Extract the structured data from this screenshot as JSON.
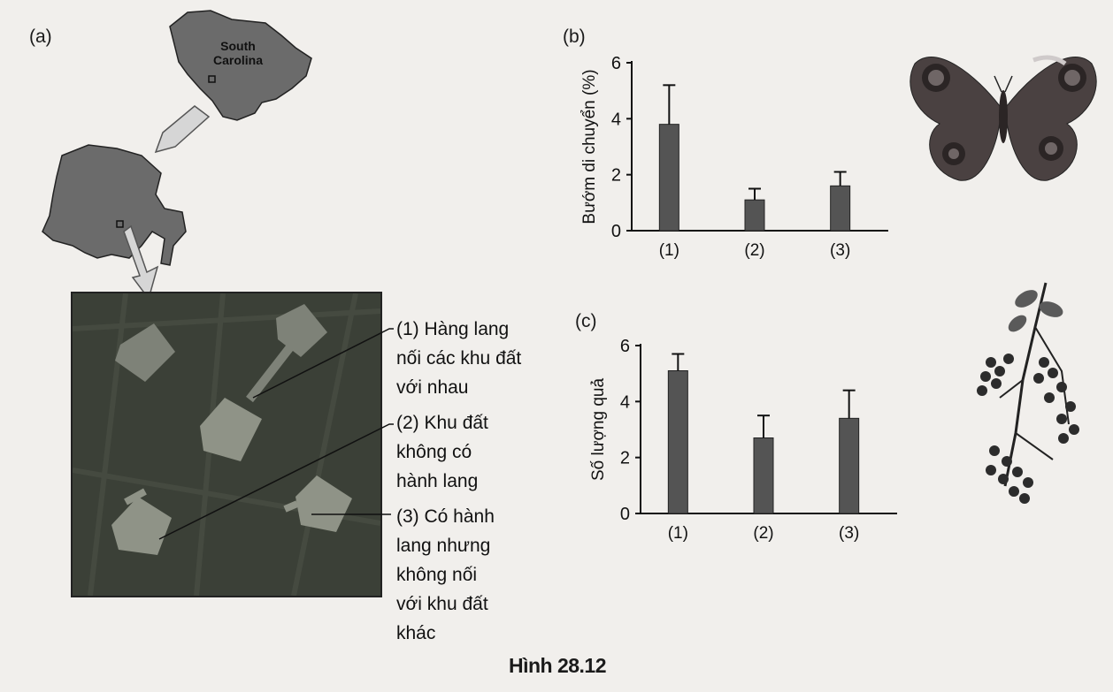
{
  "panels": {
    "a": "(a)",
    "b": "(b)",
    "c": "(c)"
  },
  "map": {
    "state_line1": "South",
    "state_line2": "Carolina"
  },
  "captions": {
    "c1": [
      "(1) Hàng lang",
      "nối các khu đất",
      "với nhau"
    ],
    "c2": [
      "(2) Khu đất",
      "không có",
      "hành lang"
    ],
    "c3": [
      "(3) Có hành",
      "lang nhưng",
      "không nối",
      "với khu đất",
      "khác"
    ]
  },
  "figure_title": "Hình 28.12",
  "colors": {
    "bar": "#545454",
    "map_fill": "#6b6b6b",
    "aerial_bg": "#3b4037",
    "patch": "#8f9387"
  },
  "icons": [
    "butterfly-icon",
    "berry-branch-icon"
  ],
  "chart_data": [
    {
      "type": "bar",
      "panel": "(b)",
      "categories": [
        "(1)",
        "(2)",
        "(3)"
      ],
      "values": [
        3.8,
        1.1,
        1.6
      ],
      "error": [
        1.4,
        0.4,
        0.5
      ],
      "ylabel": "Bướm di chuyển (%)",
      "ylim": [
        0,
        6
      ],
      "yticks": [
        0,
        2,
        4,
        6
      ]
    },
    {
      "type": "bar",
      "panel": "(c)",
      "categories": [
        "(1)",
        "(2)",
        "(3)"
      ],
      "values": [
        5.1,
        2.7,
        3.4
      ],
      "error": [
        0.6,
        0.8,
        1.0
      ],
      "ylabel": "Số lượng quả",
      "ylim": [
        0,
        6
      ],
      "yticks": [
        0,
        2,
        4,
        6
      ]
    }
  ]
}
